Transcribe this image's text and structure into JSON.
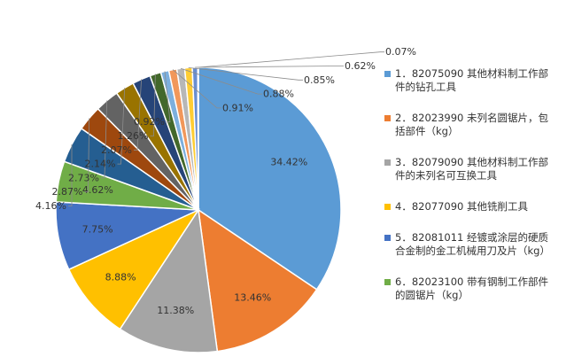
{
  "chart_data": {
    "type": "pie",
    "values": [
      34.42,
      13.46,
      11.38,
      8.88,
      7.75,
      4.62,
      4.16,
      2.87,
      2.73,
      2.14,
      2.07,
      1.26,
      0.92,
      0.91,
      0.88,
      0.85,
      0.62,
      0.07
    ],
    "data_labels": [
      "34.42%",
      "13.46%",
      "11.38%",
      "8.88%",
      "7.75%",
      "4.62%",
      "4.16%",
      "2.87%",
      "2.73%",
      "2.14%",
      "2.07%",
      "1.26%",
      "0.92%",
      "0.91%",
      "0.88%",
      "0.85%",
      "0.62%",
      "0.07%"
    ],
    "colors": [
      "#5B9BD5",
      "#ED7D31",
      "#A5A5A5",
      "#FFC000",
      "#4472C4",
      "#70AD47",
      "#255E91",
      "#9E480E",
      "#636363",
      "#997300",
      "#264478",
      "#43682B",
      "#7CAFDD",
      "#F1975A",
      "#B7B7B7",
      "#FFCD33",
      "#698ED0",
      "#8CC168"
    ],
    "legend": [
      {
        "lines": [
          "1．82075090 其他材料制工作部",
          "件的钻孔工具"
        ],
        "color": "#5B9BD5"
      },
      {
        "lines": [
          "2．82023990 未列名圆锯片，包",
          "括部件（kg）"
        ],
        "color": "#ED7D31"
      },
      {
        "lines": [
          "3．82079090 其他材料制工作部",
          "件的未列名可互换工具"
        ],
        "color": "#A5A5A5"
      },
      {
        "lines": [
          "4．82077090 其他铣削工具"
        ],
        "color": "#FFC000"
      },
      {
        "lines": [
          "5．82081011 经镀或涂层的硬质",
          "合金制的金工机械用刀及片（kg）"
        ],
        "color": "#4472C4"
      },
      {
        "lines": [
          "6．82023100 带有钢制工作部件",
          "的圆锯片（kg）"
        ],
        "color": "#70AD47"
      }
    ],
    "legend_position": "right"
  }
}
